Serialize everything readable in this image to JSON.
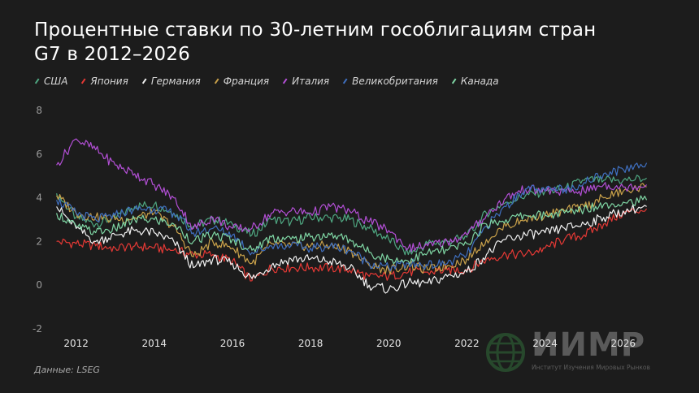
{
  "title": "Процентные ставки по 30-летним гособлигациям стран G7 в 2012–2026",
  "source": "Данные: LSEG",
  "brand": {
    "name": "ИИМР",
    "subtitle": "Институт Изучения Мировых Рынков",
    "icon": "globe-icon"
  },
  "colors": {
    "background": "#1c1c1c"
  },
  "chart_data": {
    "type": "line",
    "x": [
      2011.5,
      2012.0,
      2012.5,
      2013.0,
      2013.5,
      2014.0,
      2014.5,
      2015.0,
      2015.5,
      2016.0,
      2016.5,
      2017.0,
      2017.5,
      2018.0,
      2018.5,
      2019.0,
      2019.5,
      2020.0,
      2020.5,
      2021.0,
      2021.5,
      2022.0,
      2022.5,
      2023.0,
      2023.5,
      2024.0,
      2024.5,
      2025.0,
      2025.5,
      2026.0,
      2026.6
    ],
    "xlim": [
      2011.3,
      2026.9
    ],
    "ylim": [
      -2,
      8
    ],
    "yticks": [
      "8",
      "6",
      "4",
      "2",
      "0",
      "-2"
    ],
    "xticks": [
      "2012",
      "2014",
      "2016",
      "2018",
      "2020",
      "2022",
      "2024",
      "2026"
    ],
    "grid": false,
    "legend_position": "top-left",
    "series": [
      {
        "name": "США",
        "color": "#4fa882",
        "values": [
          4.2,
          3.1,
          2.8,
          3.1,
          3.6,
          3.7,
          3.3,
          2.7,
          3.0,
          2.8,
          2.3,
          3.0,
          2.9,
          3.1,
          3.1,
          3.0,
          2.6,
          2.1,
          1.4,
          1.9,
          2.0,
          2.2,
          3.3,
          3.8,
          4.1,
          4.3,
          4.4,
          4.8,
          4.8,
          4.8,
          4.9
        ]
      },
      {
        "name": "Япония",
        "color": "#e53935",
        "values": [
          2.0,
          1.9,
          1.8,
          1.7,
          1.8,
          1.7,
          1.6,
          1.4,
          1.4,
          1.1,
          0.2,
          0.8,
          0.8,
          0.8,
          0.8,
          0.7,
          0.4,
          0.4,
          0.6,
          0.6,
          0.7,
          0.7,
          1.2,
          1.4,
          1.4,
          1.7,
          2.1,
          2.3,
          2.8,
          3.3,
          3.5
        ]
      },
      {
        "name": "Германия",
        "color": "#f2f2f2",
        "values": [
          3.6,
          2.6,
          2.0,
          2.3,
          2.5,
          2.4,
          2.0,
          0.8,
          1.2,
          1.0,
          0.3,
          0.9,
          1.2,
          1.2,
          1.1,
          0.8,
          0.0,
          -0.2,
          0.1,
          0.1,
          0.4,
          0.6,
          1.4,
          2.1,
          2.3,
          2.4,
          2.6,
          2.8,
          3.1,
          3.4,
          3.6
        ]
      },
      {
        "name": "Франция",
        "color": "#c9a14a",
        "values": [
          4.1,
          3.3,
          3.1,
          3.0,
          3.1,
          3.3,
          2.7,
          1.3,
          2.0,
          1.7,
          1.0,
          1.9,
          1.8,
          1.8,
          1.8,
          1.6,
          0.9,
          0.7,
          0.9,
          0.7,
          0.9,
          1.2,
          2.1,
          2.7,
          3.0,
          3.2,
          3.4,
          3.6,
          4.0,
          4.3,
          4.5
        ]
      },
      {
        "name": "Италия",
        "color": "#b34fd6",
        "values": [
          5.5,
          6.7,
          6.2,
          5.5,
          5.1,
          4.6,
          4.0,
          2.6,
          3.1,
          2.6,
          2.6,
          3.3,
          3.4,
          3.3,
          3.6,
          3.4,
          2.9,
          2.5,
          1.7,
          1.8,
          2.0,
          2.3,
          3.2,
          4.0,
          4.4,
          4.3,
          4.3,
          4.3,
          4.6,
          4.5,
          4.6
        ]
      },
      {
        "name": "Великобритания",
        "color": "#3f6fbf",
        "values": [
          3.9,
          3.3,
          3.0,
          3.2,
          3.5,
          3.5,
          3.3,
          2.4,
          2.6,
          2.3,
          1.5,
          1.8,
          1.8,
          1.7,
          1.8,
          1.6,
          1.0,
          0.8,
          1.0,
          0.9,
          1.0,
          1.4,
          2.7,
          3.6,
          4.4,
          4.3,
          4.4,
          4.7,
          5.1,
          5.3,
          5.6
        ]
      },
      {
        "name": "Канада",
        "color": "#7fd6a4",
        "values": [
          3.3,
          2.7,
          2.4,
          2.6,
          3.0,
          3.0,
          2.8,
          2.0,
          2.3,
          2.1,
          1.6,
          2.2,
          2.1,
          2.2,
          2.3,
          2.1,
          1.5,
          1.2,
          1.1,
          1.5,
          1.6,
          1.9,
          2.8,
          3.0,
          3.2,
          3.2,
          3.3,
          3.5,
          3.7,
          3.8,
          3.9
        ]
      }
    ]
  }
}
